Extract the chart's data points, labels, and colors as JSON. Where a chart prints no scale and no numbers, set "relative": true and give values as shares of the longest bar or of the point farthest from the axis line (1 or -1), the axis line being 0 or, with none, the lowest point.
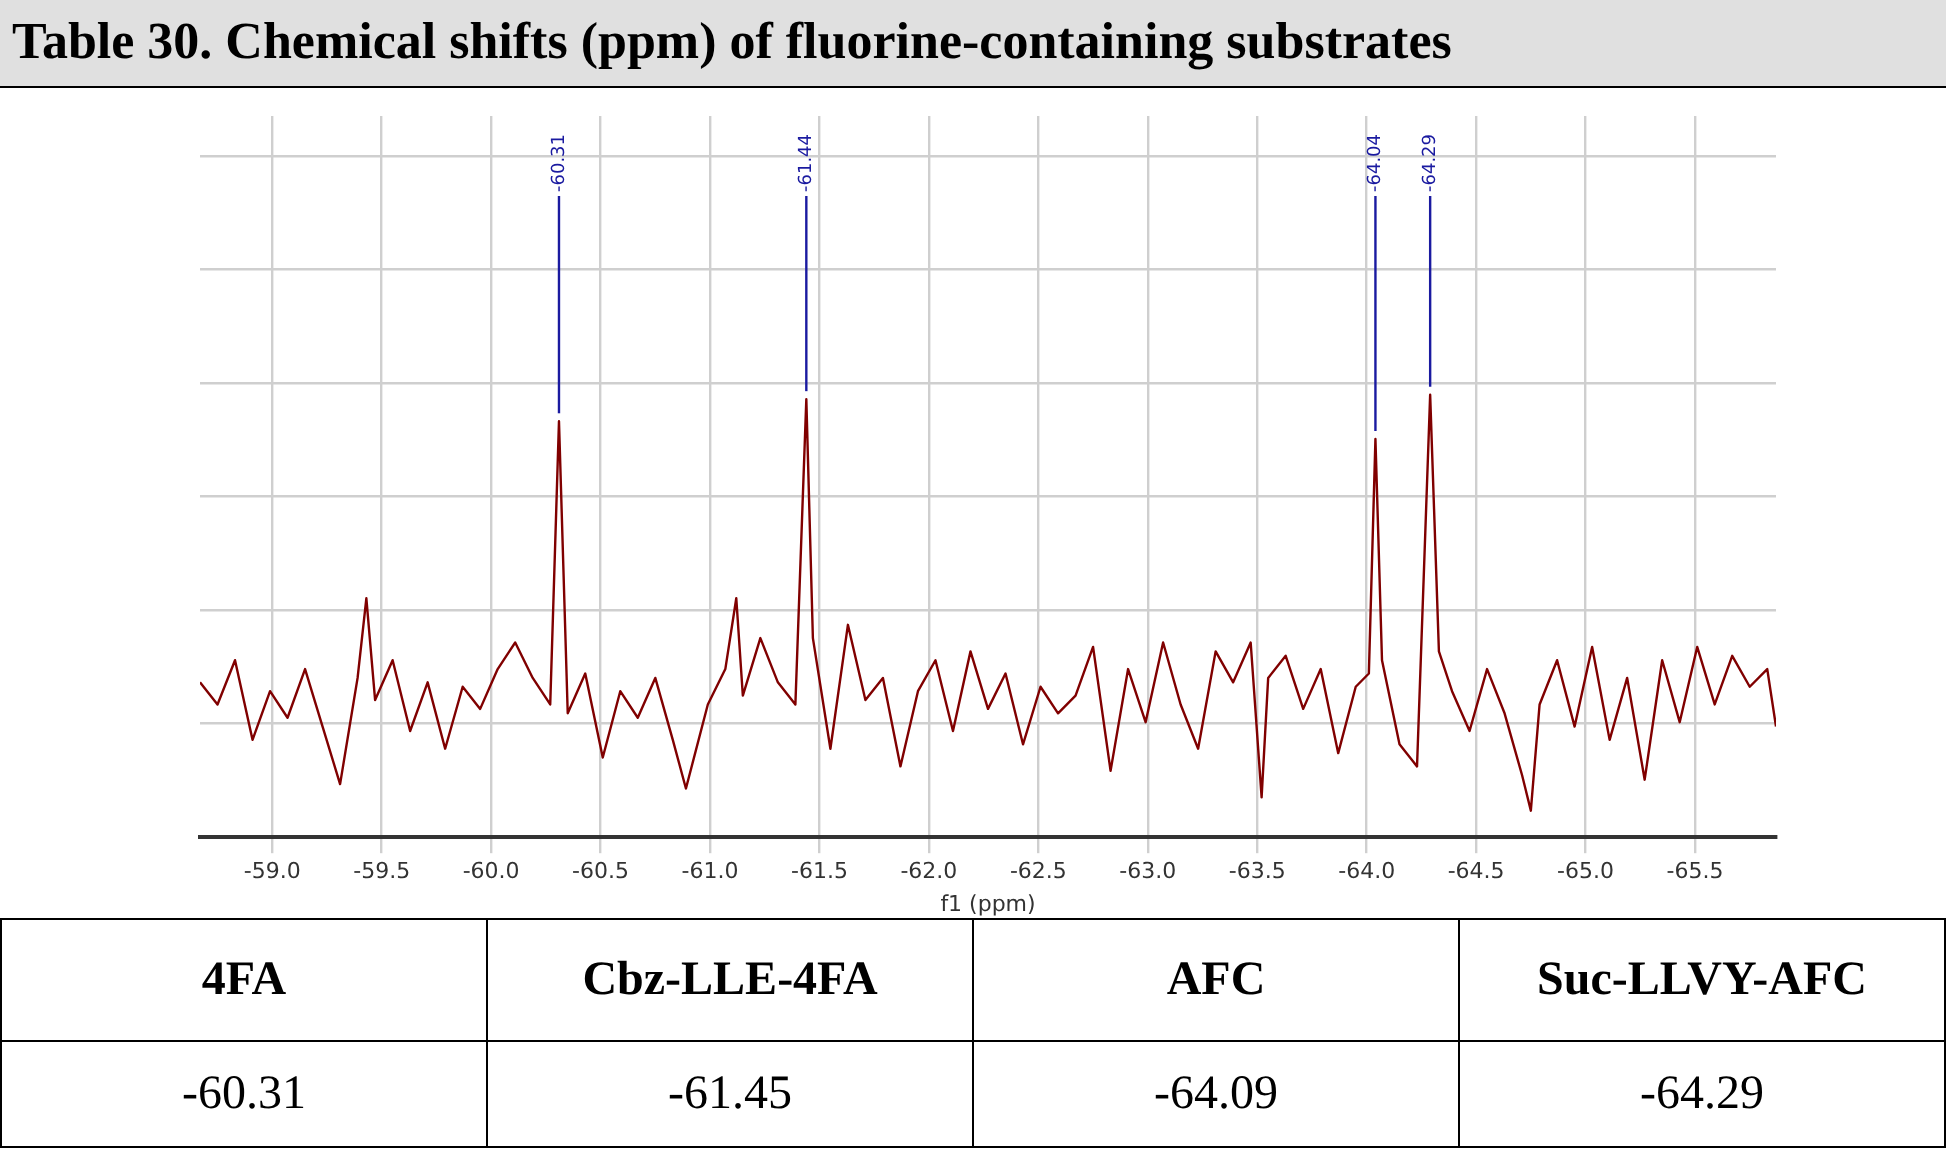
{
  "chart_data": {
    "type": "line",
    "title": "Table 30. Chemical shifts (ppm) of fluorine-containing substrates",
    "xlabel": "f1 (ppm)",
    "relative": true,
    "grid": true,
    "marker": "none",
    "line_style": "solid",
    "xlim": [
      -58.67,
      -65.87
    ],
    "xticks": [
      {
        "value": -59,
        "label": "-59.0"
      },
      {
        "value": -59.5,
        "label": "-59.5"
      },
      {
        "value": -60,
        "label": "-60.0"
      },
      {
        "value": -60.5,
        "label": "-60.5"
      },
      {
        "value": -61,
        "label": "-61.0"
      },
      {
        "value": -61.5,
        "label": "-61.5"
      },
      {
        "value": -62,
        "label": "-62.0"
      },
      {
        "value": -62.5,
        "label": "-62.5"
      },
      {
        "value": -63,
        "label": "-63.0"
      },
      {
        "value": -63.5,
        "label": "-63.5"
      },
      {
        "value": -64,
        "label": "-64.0"
      },
      {
        "value": -64.5,
        "label": "-64.5"
      },
      {
        "value": -65,
        "label": "-65.0"
      },
      {
        "value": -65.5,
        "label": "-65.5"
      }
    ],
    "series": [
      {
        "color": "#800000",
        "x": [
          -58.67,
          -58.75,
          -58.83,
          -58.91,
          -58.99,
          -59.07,
          -59.15,
          -59.23,
          -59.31,
          -59.39,
          -59.43,
          -59.47,
          -59.55,
          -59.63,
          -59.71,
          -59.79,
          -59.87,
          -59.95,
          -60.03,
          -60.11,
          -60.19,
          -60.27,
          -60.31,
          -60.35,
          -60.43,
          -60.51,
          -60.59,
          -60.67,
          -60.75,
          -60.83,
          -60.89,
          -60.99,
          -61.07,
          -61.12,
          -61.15,
          -61.23,
          -61.31,
          -61.39,
          -61.44,
          -61.47,
          -61.55,
          -61.63,
          -61.71,
          -61.79,
          -61.87,
          -61.95,
          -62.03,
          -62.11,
          -62.19,
          -62.27,
          -62.35,
          -62.43,
          -62.51,
          -62.59,
          -62.67,
          -62.75,
          -62.83,
          -62.91,
          -62.99,
          -63.07,
          -63.15,
          -63.23,
          -63.31,
          -63.39,
          -63.47,
          -63.52,
          -63.55,
          -63.63,
          -63.71,
          -63.79,
          -63.87,
          -63.95,
          -64.01,
          -64.04,
          -64.07,
          -64.15,
          -64.23,
          -64.29,
          -64.33,
          -64.39,
          -64.47,
          -64.55,
          -64.63,
          -64.71,
          -64.75,
          -64.79,
          -64.87,
          -64.95,
          -65.03,
          -65.11,
          -65.19,
          -65.27,
          -65.35,
          -65.43,
          -65.51,
          -65.59,
          -65.67,
          -65.75,
          -65.83,
          -65.87
        ],
        "values": [
          0.35,
          0.3,
          0.4,
          0.22,
          0.33,
          0.27,
          0.38,
          0.25,
          0.12,
          0.36,
          0.54,
          0.31,
          0.4,
          0.24,
          0.35,
          0.2,
          0.34,
          0.29,
          0.38,
          0.44,
          0.36,
          0.3,
          0.94,
          0.28,
          0.37,
          0.18,
          0.33,
          0.27,
          0.36,
          0.22,
          0.11,
          0.3,
          0.38,
          0.54,
          0.32,
          0.45,
          0.35,
          0.3,
          0.99,
          0.45,
          0.2,
          0.48,
          0.31,
          0.36,
          0.16,
          0.33,
          0.4,
          0.24,
          0.42,
          0.29,
          0.37,
          0.21,
          0.34,
          0.28,
          0.32,
          0.43,
          0.15,
          0.38,
          0.26,
          0.44,
          0.3,
          0.2,
          0.42,
          0.35,
          0.44,
          0.09,
          0.36,
          0.41,
          0.29,
          0.38,
          0.19,
          0.34,
          0.37,
          0.9,
          0.4,
          0.21,
          0.16,
          1.0,
          0.42,
          0.33,
          0.24,
          0.38,
          0.28,
          0.14,
          0.06,
          0.3,
          0.4,
          0.25,
          0.43,
          0.22,
          0.36,
          0.13,
          0.4,
          0.26,
          0.43,
          0.3,
          0.41,
          0.34,
          0.38,
          0.25
        ]
      }
    ],
    "annotations": [
      {
        "text": "-60.31",
        "x": -60.31,
        "y": 0.94
      },
      {
        "text": "-61.44",
        "x": -61.44,
        "y": 0.99
      },
      {
        "text": "-64.04",
        "x": -64.04,
        "y": 0.9
      },
      {
        "text": "-64.29",
        "x": -64.29,
        "y": 1.0
      },
      "4FA",
      "Cbz-LLE-4FA",
      "AFC",
      "Suc-LLVY-AFC",
      "-60.31",
      "-61.45",
      "-64.09",
      "-64.29"
    ]
  }
}
